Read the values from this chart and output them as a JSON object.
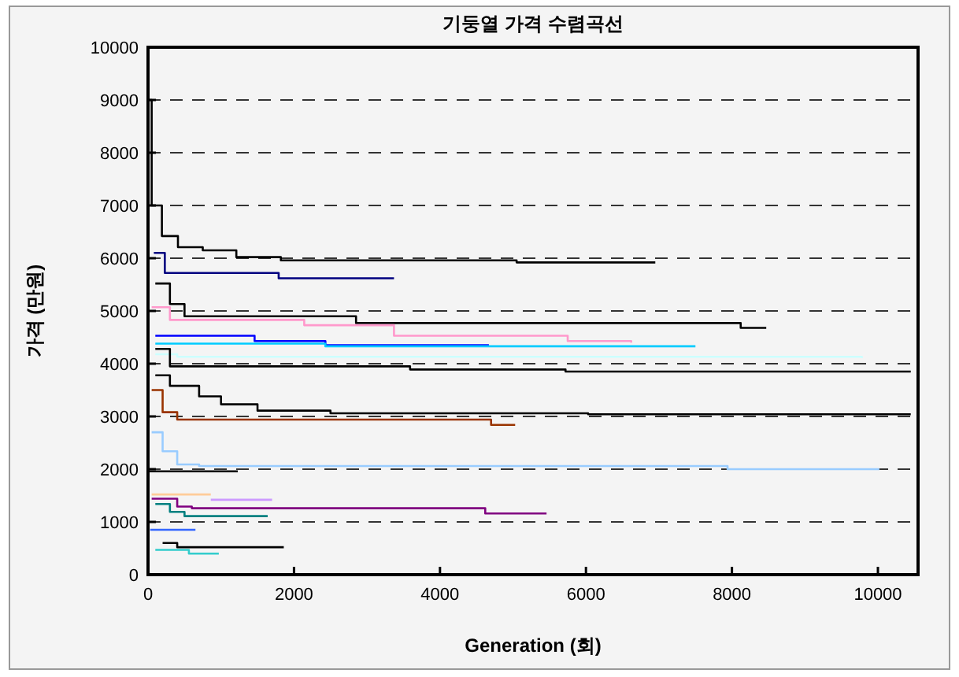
{
  "chart_data": {
    "type": "step",
    "title": "기둥열 가격 수렴곡선",
    "xlabel": "Generation (회)",
    "ylabel": "가격 (만원)",
    "xlim": [
      0,
      10550
    ],
    "ylim": [
      0,
      10000
    ],
    "xticks": [
      0,
      2000,
      4000,
      6000,
      8000,
      10000
    ],
    "yticks": [
      0,
      1000,
      2000,
      3000,
      4000,
      5000,
      6000,
      7000,
      8000,
      9000,
      10000
    ],
    "grid": "y",
    "series": [
      {
        "color": "#000000",
        "x": [
          0,
          50,
          190,
          410,
          750,
          1210,
          1820,
          5050,
          6950
        ],
        "values": [
          9000,
          7000,
          6420,
          6210,
          6150,
          6020,
          5960,
          5920,
          5920
        ]
      },
      {
        "color": "#000080",
        "x": [
          80,
          230,
          1790,
          3370
        ],
        "values": [
          6100,
          5720,
          5620,
          5620
        ]
      },
      {
        "color": "#000000",
        "x": [
          100,
          300,
          500,
          2850,
          8120,
          8470
        ],
        "values": [
          5520,
          5130,
          4900,
          4770,
          4680,
          4680
        ]
      },
      {
        "color": "#ff99cc",
        "x": [
          50,
          300,
          2140,
          3370,
          5750,
          6620
        ],
        "values": [
          5070,
          4830,
          4730,
          4530,
          4430,
          4400
        ]
      },
      {
        "color": "#0000ff",
        "x": [
          100,
          1460,
          2430,
          4670
        ],
        "values": [
          4530,
          4430,
          4350,
          4350
        ]
      },
      {
        "color": "#00ccff",
        "x": [
          100,
          2430,
          7500
        ],
        "values": [
          4380,
          4330,
          4330
        ]
      },
      {
        "color": "#ccffff",
        "x": [
          100,
          400,
          9780
        ],
        "values": [
          4180,
          4130,
          4110
        ]
      },
      {
        "color": "#000000",
        "x": [
          100,
          300,
          3590,
          5720,
          10450
        ],
        "values": [
          4280,
          3950,
          3890,
          3850,
          3850
        ]
      },
      {
        "color": "#000000",
        "x": [
          100,
          300,
          700,
          1000,
          1500,
          2500,
          6030,
          10450
        ],
        "values": [
          3780,
          3580,
          3380,
          3230,
          3110,
          3060,
          3040,
          3040
        ]
      },
      {
        "color": "#993300",
        "x": [
          50,
          200,
          400,
          4700,
          5030
        ],
        "values": [
          3500,
          3080,
          2940,
          2840,
          2840
        ]
      },
      {
        "color": "#99ccff",
        "x": [
          50,
          200,
          400,
          700,
          7940,
          10020
        ],
        "values": [
          2700,
          2340,
          2090,
          2060,
          2000,
          2000
        ]
      },
      {
        "color": "#000000",
        "x": [
          20,
          1230
        ],
        "values": [
          1960,
          1960
        ]
      },
      {
        "color": "#ffcc99",
        "x": [
          50,
          860
        ],
        "values": [
          1520,
          1520
        ]
      },
      {
        "color": "#cc99ff",
        "x": [
          860,
          1700
        ],
        "values": [
          1420,
          1420
        ]
      },
      {
        "color": "#800080",
        "x": [
          50,
          400,
          600,
          4620,
          5460
        ],
        "values": [
          1440,
          1290,
          1260,
          1160,
          1160
        ]
      },
      {
        "color": "#008080",
        "x": [
          100,
          300,
          500,
          1640
        ],
        "values": [
          1340,
          1190,
          1110,
          1110
        ]
      },
      {
        "color": "#3366ff",
        "x": [
          30,
          650
        ],
        "values": [
          850,
          850
        ]
      },
      {
        "color": "#000000",
        "x": [
          200,
          400,
          1860
        ],
        "values": [
          600,
          520,
          520
        ]
      },
      {
        "color": "#33cccc",
        "x": [
          100,
          560,
          970
        ],
        "values": [
          470,
          400,
          400
        ]
      }
    ]
  }
}
